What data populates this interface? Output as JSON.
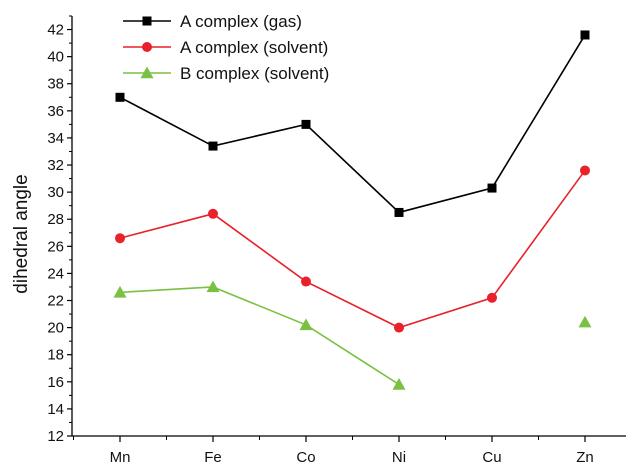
{
  "chart_data": {
    "type": "line",
    "title": "",
    "xlabel": "",
    "ylabel": "dihedral angle",
    "categories": [
      "Mn",
      "Fe",
      "Co",
      "Ni",
      "Cu",
      "Zn"
    ],
    "ylim": [
      12,
      43
    ],
    "yticks": [
      12,
      14,
      16,
      18,
      20,
      22,
      24,
      26,
      28,
      30,
      32,
      34,
      36,
      38,
      40,
      42
    ],
    "grid": false,
    "legend_position": "top-left",
    "series": [
      {
        "name": "A complex (gas)",
        "color": "#000000",
        "marker": "square",
        "values": [
          37.0,
          33.4,
          35.0,
          28.5,
          30.3,
          41.6
        ]
      },
      {
        "name": "A complex (solvent)",
        "color": "#e8212a",
        "marker": "circle",
        "values": [
          26.6,
          28.4,
          23.4,
          20.0,
          22.2,
          31.6
        ]
      },
      {
        "name": "B complex (solvent)",
        "color": "#7ac143",
        "marker": "triangle",
        "values": [
          22.6,
          23.0,
          20.2,
          15.8,
          null,
          20.4
        ]
      }
    ]
  }
}
